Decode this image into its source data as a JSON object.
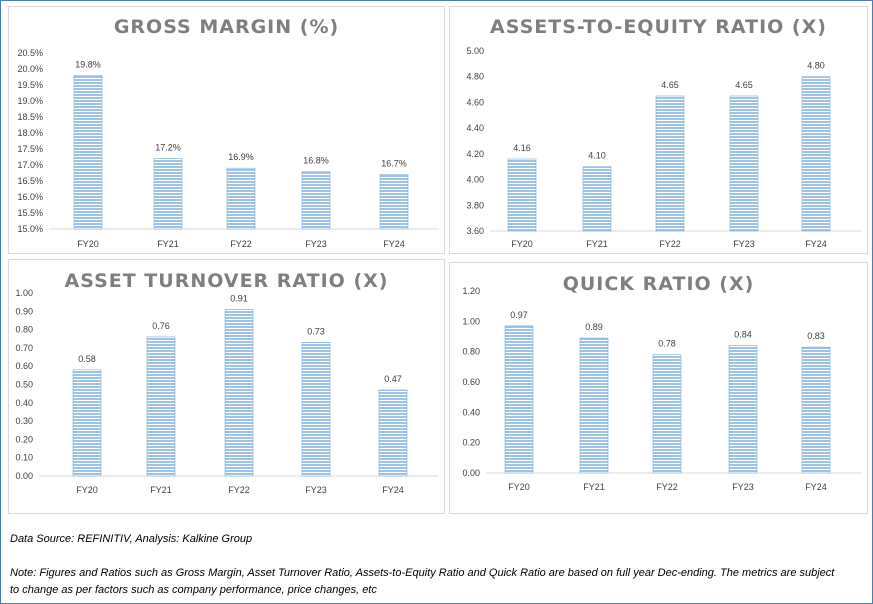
{
  "chart_data": [
    {
      "type": "bar",
      "title": "GROSS MARGIN (%)",
      "categories": [
        "FY20",
        "FY21",
        "FY22",
        "FY23",
        "FY24"
      ],
      "values": [
        19.8,
        17.2,
        16.9,
        16.8,
        16.7
      ],
      "data_labels": [
        "19.8%",
        "17.2%",
        "16.9%",
        "16.8%",
        "16.7%"
      ],
      "ylim": [
        15.0,
        20.5
      ],
      "yticks": [
        "15.0%",
        "15.5%",
        "16.0%",
        "16.5%",
        "17.0%",
        "17.5%",
        "18.0%",
        "18.5%",
        "19.0%",
        "19.5%",
        "20.0%",
        "20.5%"
      ],
      "grid": false,
      "bar_color": "#9dc3e6"
    },
    {
      "type": "bar",
      "title": "ASSETS-TO-EQUITY RATIO (X)",
      "categories": [
        "FY20",
        "FY21",
        "FY22",
        "FY23",
        "FY24"
      ],
      "values": [
        4.16,
        4.1,
        4.65,
        4.65,
        4.8
      ],
      "data_labels": [
        "4.16",
        "4.10",
        "4.65",
        "4.65",
        "4.80"
      ],
      "ylim": [
        3.6,
        5.0
      ],
      "yticks": [
        "3.60",
        "3.80",
        "4.00",
        "4.20",
        "4.40",
        "4.60",
        "4.80",
        "5.00"
      ],
      "grid": false,
      "bar_color": "#9dc3e6"
    },
    {
      "type": "bar",
      "title": "ASSET TURNOVER RATIO (X)",
      "categories": [
        "FY20",
        "FY21",
        "FY22",
        "FY23",
        "FY24"
      ],
      "values": [
        0.58,
        0.76,
        0.91,
        0.73,
        0.47
      ],
      "data_labels": [
        "0.58",
        "0.76",
        "0.91",
        "0.73",
        "0.47"
      ],
      "ylim": [
        0,
        1.0
      ],
      "yticks": [
        "0.00",
        "0.10",
        "0.20",
        "0.30",
        "0.40",
        "0.50",
        "0.60",
        "0.70",
        "0.80",
        "0.90",
        "1.00"
      ],
      "grid": false,
      "bar_color": "#9dc3e6"
    },
    {
      "type": "bar",
      "title": "QUICK RATIO (X)",
      "categories": [
        "FY20",
        "FY21",
        "FY22",
        "FY23",
        "FY24"
      ],
      "values": [
        0.97,
        0.89,
        0.78,
        0.84,
        0.83
      ],
      "data_labels": [
        "0.97",
        "0.89",
        "0.78",
        "0.84",
        "0.83"
      ],
      "ylim": [
        0,
        1.2
      ],
      "yticks": [
        "0.00",
        "0.20",
        "0.40",
        "0.60",
        "0.80",
        "1.00",
        "1.20"
      ],
      "grid": false,
      "bar_color": "#9dc3e6"
    }
  ],
  "footer": {
    "source": "Data Source: REFINITIV, Analysis: Kalkine Group",
    "note_line1": "Note: Figures and Ratios such as Gross Margin, Asset Turnover Ratio, Assets-to-Equity Ratio and Quick Ratio are based on full year Dec-ending. The metrics are subject",
    "note_line2": "to change as per factors such as company performance, price changes, etc"
  }
}
